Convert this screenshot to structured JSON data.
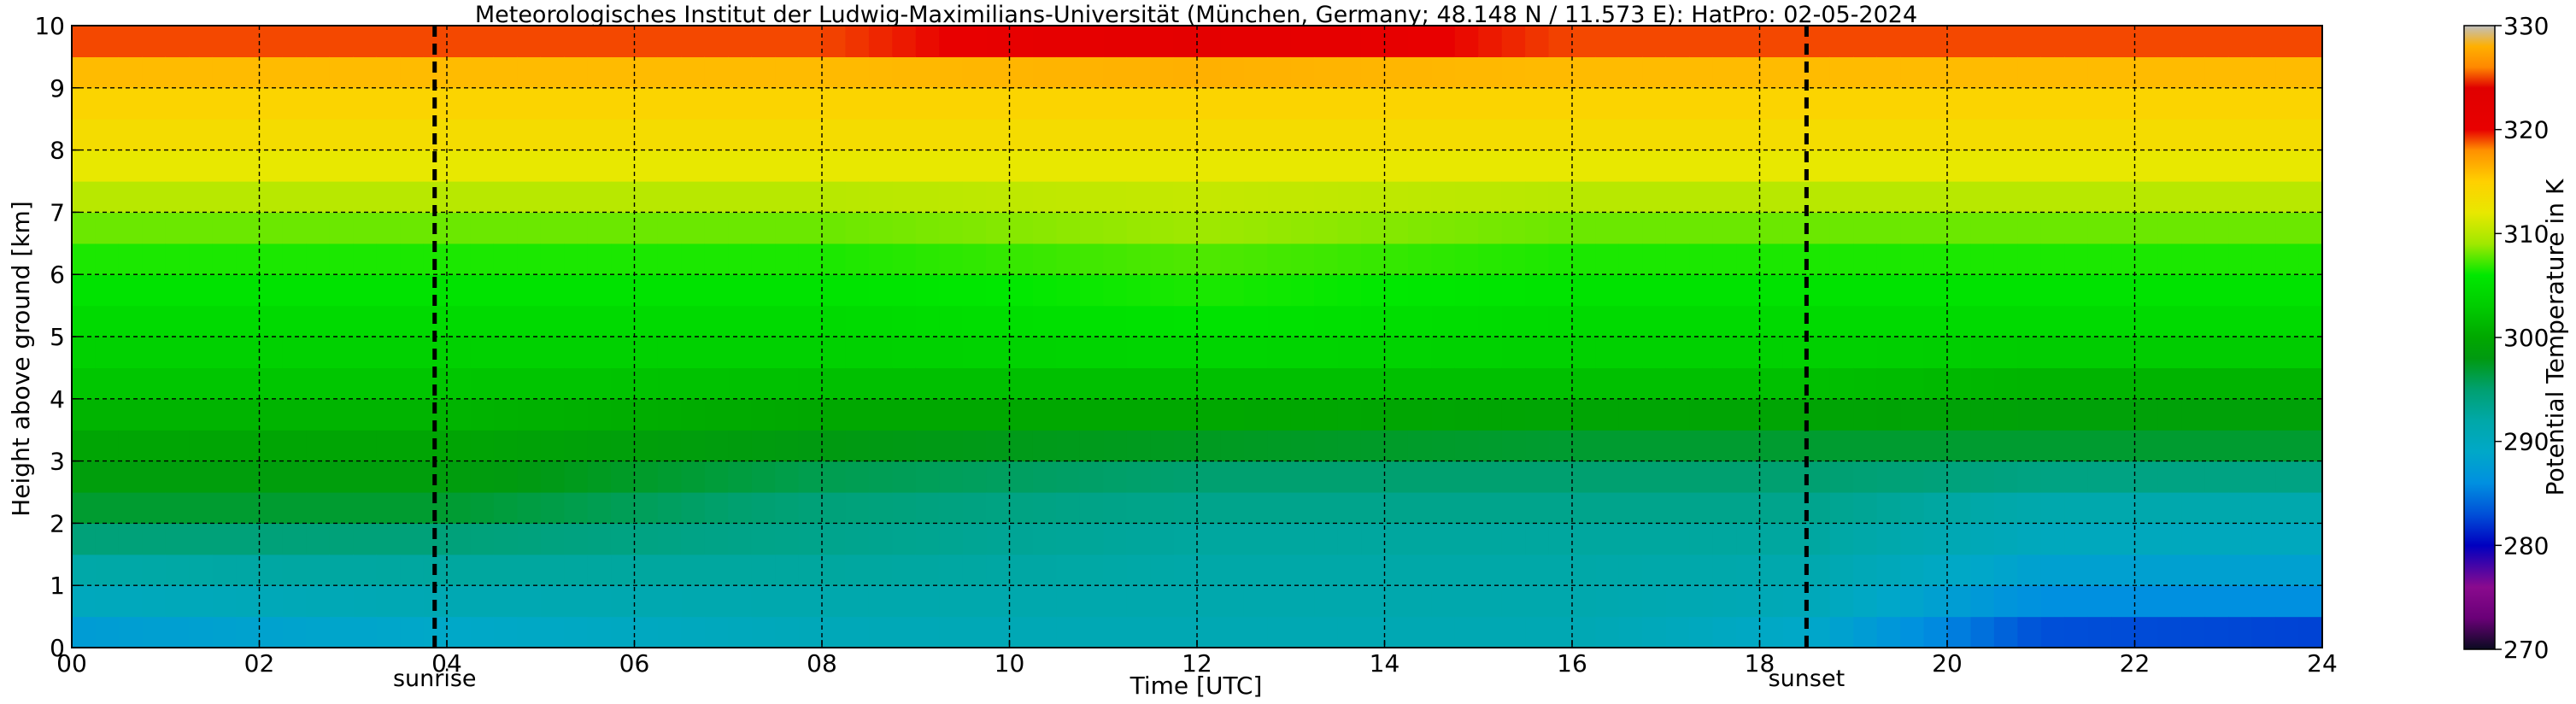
{
  "chart_data": {
    "type": "heatmap",
    "title": "Meteorologisches Institut der Ludwig-Maximilians-Universität (München, Germany; 48.148 N / 11.573 E):    HatPro: 02-05-2024",
    "xlabel": "Time [UTC]",
    "ylabel": "Height above ground [km]",
    "xlim": [
      0,
      24
    ],
    "ylim": [
      0,
      10
    ],
    "x_ticks": [
      0,
      2,
      4,
      6,
      8,
      10,
      12,
      14,
      16,
      18,
      20,
      22,
      24
    ],
    "x_tick_labels": [
      "00",
      "02",
      "04",
      "06",
      "08",
      "10",
      "12",
      "14",
      "16",
      "18",
      "20",
      "22",
      "24"
    ],
    "y_ticks": [
      0,
      1,
      2,
      3,
      4,
      5,
      6,
      7,
      8,
      9,
      10
    ],
    "y_tick_labels": [
      "0",
      "1",
      "2",
      "3",
      "4",
      "5",
      "6",
      "7",
      "8",
      "9",
      "10"
    ],
    "grid": true,
    "grid_style": "dashed",
    "colorbar": {
      "label": "Potential Temperature in K",
      "range": [
        270,
        330
      ],
      "ticks": [
        270,
        280,
        290,
        300,
        310,
        320,
        330
      ],
      "tick_labels": [
        "270",
        "280",
        "290",
        "300",
        "310",
        "320",
        "330"
      ],
      "colors": [
        {
          "value": 270,
          "color": "#0a0a20"
        },
        {
          "value": 273,
          "color": "#6a0078"
        },
        {
          "value": 276,
          "color": "#8a0a8e"
        },
        {
          "value": 280,
          "color": "#0000c0"
        },
        {
          "value": 283,
          "color": "#0050d8"
        },
        {
          "value": 286,
          "color": "#0090e0"
        },
        {
          "value": 289,
          "color": "#00a8c8"
        },
        {
          "value": 292,
          "color": "#00a8a8"
        },
        {
          "value": 295,
          "color": "#00a070"
        },
        {
          "value": 298,
          "color": "#009a10"
        },
        {
          "value": 300,
          "color": "#00a800"
        },
        {
          "value": 303,
          "color": "#00cc00"
        },
        {
          "value": 306,
          "color": "#00e800"
        },
        {
          "value": 309,
          "color": "#a0e800"
        },
        {
          "value": 312,
          "color": "#e8e800"
        },
        {
          "value": 315,
          "color": "#ffd000"
        },
        {
          "value": 318,
          "color": "#ff9000"
        },
        {
          "value": 320,
          "color": "#e80000"
        },
        {
          "value": 324,
          "color": "#e00000"
        },
        {
          "value": 326,
          "color": "#ff8800"
        },
        {
          "value": 328,
          "color": "#ffb000"
        },
        {
          "value": 330,
          "color": "#c0c0c0"
        }
      ]
    },
    "markers": [
      {
        "time": 3.87,
        "label": "sunrise"
      },
      {
        "time": 18.5,
        "label": "sunset"
      }
    ],
    "heights_km": [
      0,
      0.5,
      1,
      1.5,
      2,
      2.5,
      3,
      3.5,
      4,
      4.5,
      5,
      5.5,
      6,
      6.5,
      7,
      7.5,
      8,
      8.5,
      9,
      9.5,
      10
    ],
    "profiles": [
      {
        "time": 0,
        "theta": [
          286,
          289,
          291,
          293,
          296,
          298,
          299,
          300,
          302,
          303,
          304,
          305,
          306,
          307,
          309,
          311,
          313,
          314,
          315,
          317,
          321
        ]
      },
      {
        "time": 4,
        "theta": [
          288,
          290,
          292,
          293,
          296,
          298,
          299,
          300,
          302,
          303,
          304,
          305,
          306,
          307,
          309,
          311,
          313,
          314,
          315,
          317,
          321
        ]
      },
      {
        "time": 8,
        "theta": [
          290,
          291,
          292,
          293,
          294,
          295,
          297,
          299,
          301,
          303,
          304,
          305,
          306,
          307,
          309,
          311,
          313,
          314,
          315,
          317,
          321
        ]
      },
      {
        "time": 12,
        "theta": [
          291,
          291,
          292,
          292,
          293,
          294,
          296,
          299,
          301,
          303,
          305,
          306,
          307,
          308,
          310,
          311,
          313,
          314,
          315,
          318,
          326
        ]
      },
      {
        "time": 16,
        "theta": [
          291,
          291,
          292,
          292,
          293,
          294,
          296,
          298,
          301,
          303,
          304,
          305,
          306,
          307,
          309,
          311,
          313,
          314,
          315,
          317,
          321
        ]
      },
      {
        "time": 18.5,
        "theta": [
          288,
          290,
          291,
          292,
          293,
          294,
          296,
          298,
          301,
          303,
          304,
          305,
          306,
          307,
          309,
          311,
          313,
          314,
          315,
          317,
          321
        ]
      },
      {
        "time": 21,
        "theta": [
          281,
          285,
          287,
          289,
          291,
          292,
          296,
          298,
          300,
          302,
          304,
          305,
          306,
          307,
          309,
          311,
          313,
          314,
          315,
          317,
          321
        ]
      },
      {
        "time": 24,
        "theta": [
          280,
          285,
          287,
          289,
          291,
          292,
          296,
          298,
          300,
          302,
          304,
          305,
          306,
          307,
          309,
          311,
          313,
          314,
          315,
          317,
          321
        ]
      }
    ]
  }
}
